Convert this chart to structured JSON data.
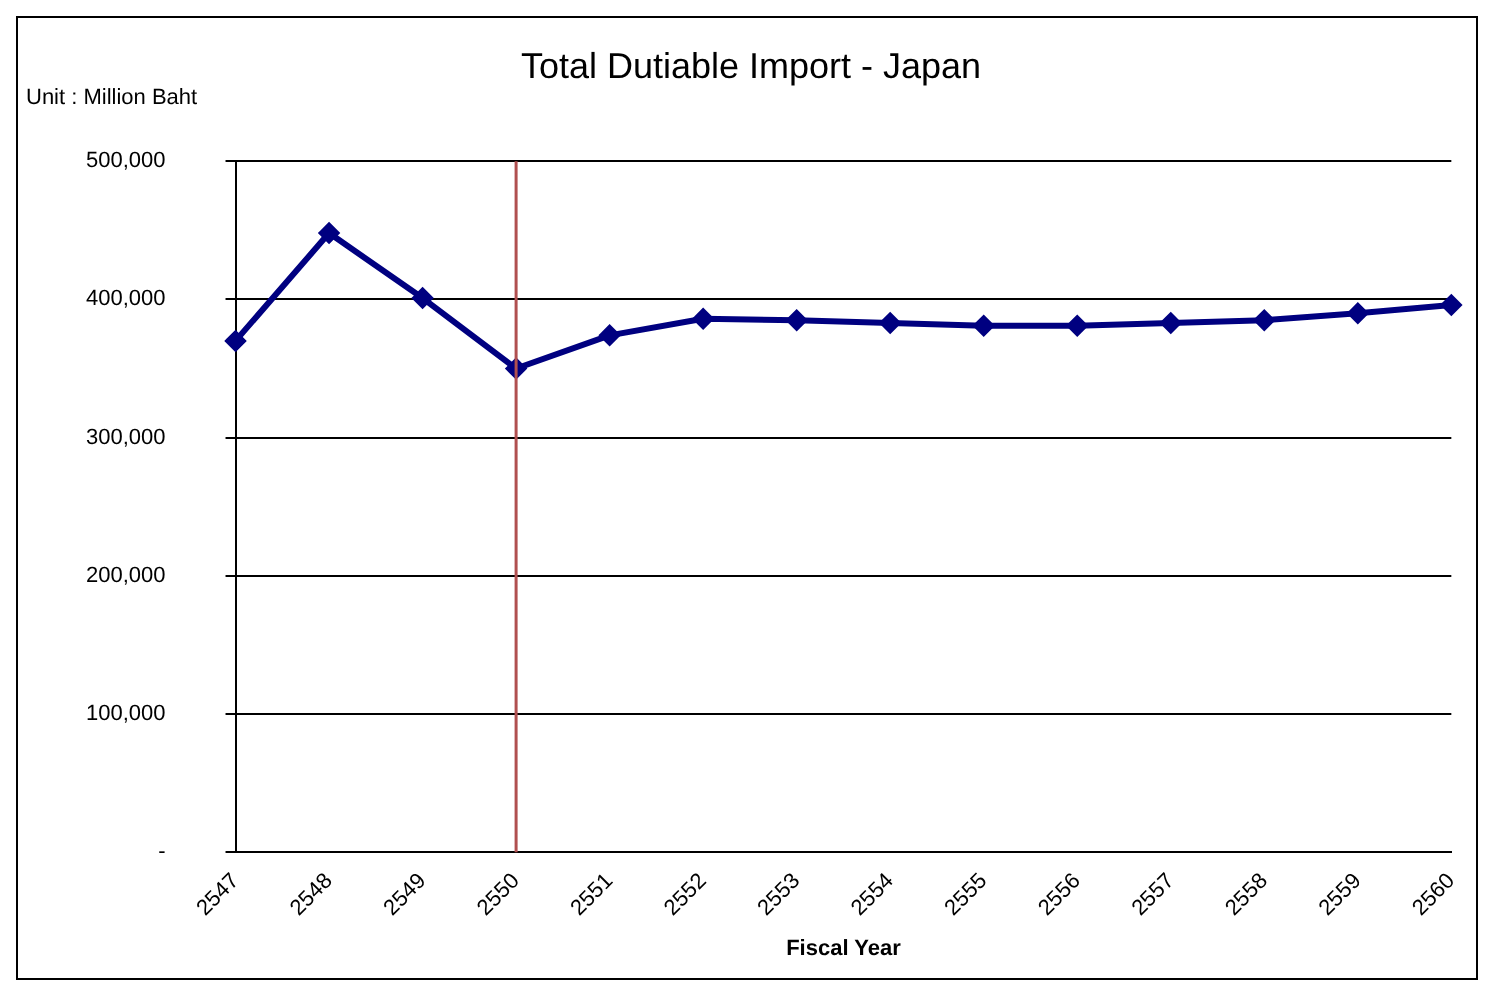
{
  "chart_data": {
    "type": "line",
    "title": "Total Dutiable Import - Japan",
    "xlabel": "Fiscal Year",
    "ylabel": "Unit : Million Baht",
    "categories": [
      "2547",
      "2548",
      "2549",
      "2550",
      "2551",
      "2552",
      "2553",
      "2554",
      "2555",
      "2556",
      "2557",
      "2558",
      "2559",
      "2560"
    ],
    "series": [
      {
        "color": "#000080",
        "values": [
          370000,
          448000,
          401000,
          350000,
          374000,
          386000,
          385000,
          383000,
          381000,
          381000,
          383000,
          385000,
          390000,
          396000
        ]
      }
    ],
    "ylim": [
      0,
      500000
    ],
    "yticks": [
      {
        "value": 0,
        "label": "-"
      },
      {
        "value": 100000,
        "label": "100,000"
      },
      {
        "value": 200000,
        "label": "200,000"
      },
      {
        "value": 300000,
        "label": "300,000"
      },
      {
        "value": 400000,
        "label": "400,000"
      },
      {
        "value": 500000,
        "label": "500,000"
      }
    ],
    "ref_lines": [
      {
        "axis": "x",
        "value": "2550",
        "color": "#b05050"
      }
    ],
    "grid": "y",
    "legend": false,
    "marker": "diamond",
    "line_style": "solid"
  }
}
